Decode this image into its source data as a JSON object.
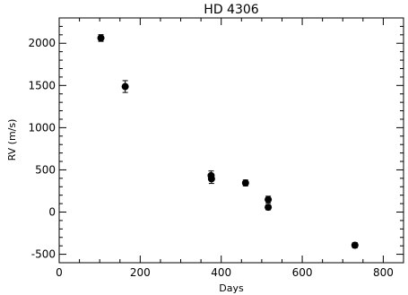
{
  "chart_data": {
    "type": "scatter",
    "title": "HD 4306",
    "xlabel": "Days",
    "ylabel": "RV (m/s)",
    "xlim": [
      0,
      850
    ],
    "ylim": [
      -600,
      2300
    ],
    "x_ticks": [
      0,
      200,
      400,
      600,
      800
    ],
    "y_ticks": [
      -500,
      0,
      500,
      1000,
      1500,
      2000
    ],
    "grid": false,
    "series": [
      {
        "points": [
          {
            "x": 103,
            "y": 2062,
            "err": 40
          },
          {
            "x": 163,
            "y": 1487,
            "err": 70
          },
          {
            "x": 375,
            "y": 432,
            "err": 55
          },
          {
            "x": 376,
            "y": 394,
            "err": 55
          },
          {
            "x": 460,
            "y": 345,
            "err": 35
          },
          {
            "x": 516,
            "y": 148,
            "err": 40
          },
          {
            "x": 516,
            "y": 57,
            "err": 30
          },
          {
            "x": 730,
            "y": -393,
            "err": 30
          }
        ]
      }
    ]
  }
}
